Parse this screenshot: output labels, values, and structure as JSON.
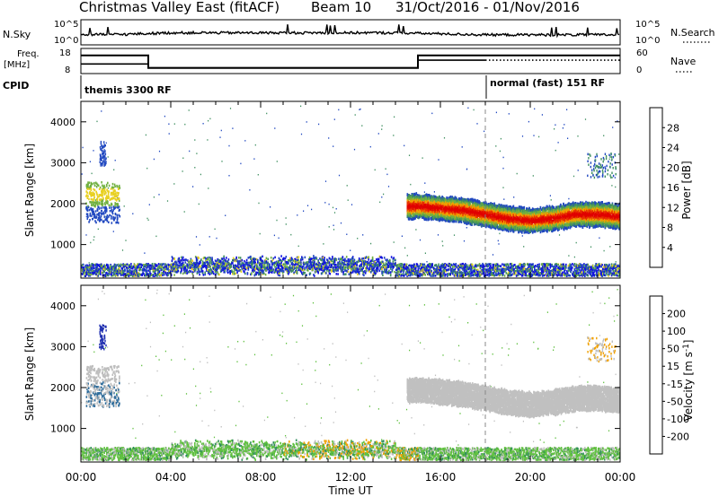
{
  "header": {
    "title": "Christmas Valley East (fitACF)",
    "beam": "Beam 10",
    "dates": "31/Oct/2016 - 01/Nov/2016"
  },
  "summary_panels": {
    "nsky": {
      "label": "N.Sky",
      "left_ticks": [
        "10^5",
        "10^0"
      ],
      "right_ticks": [
        "10^5",
        "10^0"
      ],
      "right_label": "N.Search"
    },
    "freq": {
      "label_line1": "Freq.",
      "label_line2": "[MHz]",
      "left_ticks": [
        "18",
        "8"
      ],
      "right_ticks": [
        "60",
        "0"
      ],
      "right_label": "Nave"
    },
    "cpid": {
      "label": "CPID",
      "mode1": "themis 3300 RF",
      "mode2": "normal (fast) 151 RF"
    }
  },
  "colors": {
    "power_scale": [
      "#1010e0",
      "#2048c0",
      "#3070a0",
      "#409060",
      "#70b040",
      "#e8d020",
      "#f0a000",
      "#f07000",
      "#e83000",
      "#e00000"
    ],
    "velocity_scale": [
      "#2030b0",
      "#2a6a9a",
      "#2e8c5a",
      "#60c040",
      "#bebebe",
      "#bebebe",
      "#f0a000",
      "#f06a00",
      "#e02000",
      "#e00000"
    ],
    "power_line": "#e00000",
    "velocity_ground": "#c0c0c0",
    "axis": "#000000"
  },
  "chart_data": [
    {
      "type": "line",
      "name": "nsky-nsearch",
      "x": [
        "00:00",
        "02:00",
        "04:00",
        "06:00",
        "08:00",
        "10:00",
        "12:00",
        "14:00",
        "16:00",
        "18:00",
        "20:00",
        "22:00",
        "00:00"
      ],
      "series": [
        {
          "values": [
            2.0,
            2.1,
            2.4,
            2.4,
            2.4,
            2.4,
            2.4,
            2.4,
            2.2,
            2.0,
            2.0,
            2.0,
            2.0
          ]
        }
      ],
      "ylim": [
        0,
        5
      ]
    },
    {
      "type": "line",
      "name": "frequency-nave",
      "series": [
        {
          "values_freq_mhz": [
            [
              0.0,
              15.2
            ],
            [
              3.0,
              15.2
            ],
            [
              3.0,
              10.2
            ],
            [
              15.0,
              10.2
            ],
            [
              15.0,
              15.2
            ],
            [
              24.0,
              15.2
            ]
          ]
        },
        {
          "values_nave": [
            [
              0.0,
              23
            ],
            [
              3.0,
              23
            ],
            [
              3.0,
              14
            ],
            [
              15.0,
              14
            ],
            [
              15.0,
              32
            ],
            [
              18.0,
              32
            ]
          ]
        }
      ],
      "ylim_freq": [
        8,
        18
      ],
      "ylim_nave": [
        0,
        60
      ]
    },
    {
      "type": "heatmap",
      "name": "power",
      "xlabel": "",
      "ylabel": "Slant Range [km]",
      "x_ticks": [
        "00:00",
        "04:00",
        "08:00",
        "12:00",
        "16:00",
        "20:00",
        "00:00"
      ],
      "xlim_hours": [
        0,
        24
      ],
      "y_ticks": [
        1000,
        2000,
        3000,
        4000
      ],
      "ylim": [
        180,
        4500
      ],
      "colorbar": {
        "label": "Power [dB]",
        "ticks": [
          4,
          8,
          12,
          16,
          20,
          24,
          28
        ],
        "range": [
          0,
          30
        ]
      },
      "features": [
        {
          "label": "near-range band",
          "hours": [
            0,
            24
          ],
          "range_km": [
            200,
            450
          ],
          "power_db": [
            4,
            12
          ]
        },
        {
          "label": "early echoes",
          "hours": [
            0.2,
            1.6
          ],
          "range_km": [
            1500,
            2500
          ],
          "power_db": [
            4,
            20
          ]
        },
        {
          "label": "main F-region band",
          "hours": [
            14.5,
            24
          ],
          "range_km": [
            1400,
            2200
          ],
          "power_db": [
            8,
            30
          ]
        }
      ],
      "main_band_range_km": [
        [
          15.0,
          1900
        ],
        [
          16.0,
          1850
        ],
        [
          17.0,
          1800
        ],
        [
          18.0,
          1700
        ],
        [
          19.0,
          1600
        ],
        [
          20.0,
          1550
        ],
        [
          21.0,
          1600
        ],
        [
          22.0,
          1700
        ],
        [
          23.0,
          1700
        ],
        [
          24.0,
          1650
        ]
      ]
    },
    {
      "type": "heatmap",
      "name": "velocity",
      "xlabel": "Time UT",
      "ylabel": "Slant Range [km]",
      "x_ticks": [
        "00:00",
        "04:00",
        "08:00",
        "12:00",
        "16:00",
        "20:00",
        "00:00"
      ],
      "xlim_hours": [
        0,
        24
      ],
      "y_ticks": [
        1000,
        2000,
        3000,
        4000
      ],
      "ylim": [
        180,
        4500
      ],
      "colorbar": {
        "label": "Velocity [m s^-1]",
        "ticks": [
          200,
          100,
          50,
          15,
          -15,
          -50,
          -100,
          -200
        ],
        "range": [
          -250,
          250
        ]
      },
      "features": [
        {
          "label": "near-range band",
          "hours": [
            0,
            24
          ],
          "range_km": [
            200,
            500
          ],
          "velocity": [
            15,
            100
          ]
        },
        {
          "label": "ground scatter",
          "hours": [
            14.5,
            24
          ],
          "range_km": [
            1400,
            2200
          ],
          "velocity": [
            -15,
            15
          ]
        }
      ]
    }
  ],
  "page": {
    "separator_hour": 18
  }
}
